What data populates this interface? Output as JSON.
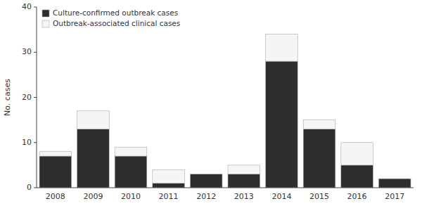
{
  "chart_data": {
    "type": "bar",
    "stacked": true,
    "categories": [
      "2008",
      "2009",
      "2010",
      "2011",
      "2012",
      "2013",
      "2014",
      "2015",
      "2016",
      "2017"
    ],
    "series": [
      {
        "name": "Culture-confirmed outbreak cases",
        "color": "#2d2d2d",
        "values": [
          7,
          13,
          7,
          1,
          3,
          3,
          28,
          13,
          5,
          2
        ]
      },
      {
        "name": "Outbreak-associated clinical cases",
        "color": "#f5f5f5",
        "values": [
          1,
          4,
          2,
          3,
          0,
          2,
          6,
          2,
          5,
          0
        ]
      }
    ],
    "ylim": [
      0,
      40
    ],
    "yticks": [
      0,
      10,
      20,
      30,
      40
    ],
    "ylabel": "No. cases",
    "grid": false,
    "legend": "upper left"
  }
}
